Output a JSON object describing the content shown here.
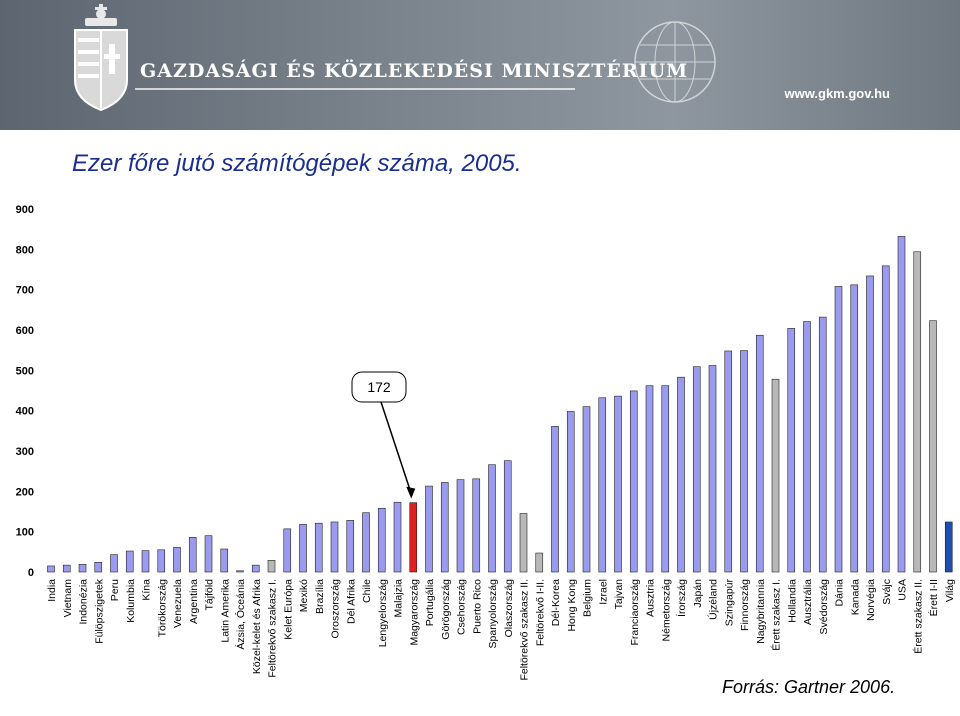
{
  "header": {
    "ministry_name": "GAZDASÁGI ÉS KÖZLEKEDÉSI MINISZTÉRIUM",
    "url": "www.gkm.gov.hu",
    "logo_icon": "hungarian-coat-of-arms-icon",
    "globe_icon": "globe-icon"
  },
  "colors": {
    "bar_default": "#9a9aee",
    "bar_group": "#b8b8b8",
    "bar_hungary": "#e02020",
    "bar_world": "#1c4fb0",
    "title": "#1a2e8f"
  },
  "chart_data": {
    "type": "bar",
    "title": "Ezer főre jutó számítógépek száma, 2005.",
    "source": "Forrás: Gartner 2006.",
    "ylim": [
      0,
      900
    ],
    "yticks": [
      0,
      100,
      200,
      300,
      400,
      500,
      600,
      700,
      800,
      900
    ],
    "grid": false,
    "annotation": {
      "text": "172",
      "target": "Magyarország"
    },
    "categories": [
      "India",
      "Vietnam",
      "Indonézia",
      "Fülöpszigetek",
      "Peru",
      "Kolumbia",
      "Kína",
      "Törökország",
      "Venezuela",
      "Argentina",
      "Tájföld",
      "Latin Amerika",
      "Ázsia, Óceánia",
      "Közel-kelet és Afrika",
      "Feltörekvő szakasz I.",
      "Kelet Európa",
      "Mexikó",
      "Brazília",
      "Oroszország",
      "Dél Afrika",
      "Chile",
      "Lengyelország",
      "Malajzia",
      "Magyarország",
      "Portugália",
      "Görögország",
      "Csehország",
      "Puerto Rico",
      "Spanyolország",
      "Olaszország",
      "Feltörekvő szakasz II.",
      "Feltörekvő I-II.",
      "Dél-Korea",
      "Hong Kong",
      "Belgium",
      "Izrael",
      "Tajvan",
      "Franciaország",
      "Ausztria",
      "Németország",
      "Írország",
      "Japán",
      "Újzéland",
      "Szingapúr",
      "Finnország",
      "Nagybritannia",
      "Érett szakasz I.",
      "Hollandia",
      "Ausztrália",
      "Svédország",
      "Dánia",
      "Kanada",
      "Norvégia",
      "Svájc",
      "USA",
      "Érett szakasz II.",
      "Érett I-II",
      "Világ"
    ],
    "values": [
      15,
      17,
      19,
      24,
      43,
      52,
      53,
      55,
      61,
      86,
      90,
      57,
      3,
      17,
      29,
      107,
      118,
      121,
      124,
      128,
      147,
      158,
      173,
      172,
      213,
      222,
      229,
      231,
      266,
      276,
      145,
      47,
      361,
      398,
      410,
      432,
      436,
      449,
      462,
      462,
      483,
      509,
      512,
      548,
      549,
      587,
      478,
      604,
      621,
      632,
      708,
      712,
      734,
      759,
      832,
      794,
      623,
      124
    ],
    "bar_kinds": [
      "default",
      "default",
      "default",
      "default",
      "default",
      "default",
      "default",
      "default",
      "default",
      "default",
      "default",
      "default",
      "default",
      "default",
      "group",
      "default",
      "default",
      "default",
      "default",
      "default",
      "default",
      "default",
      "default",
      "hungary",
      "default",
      "default",
      "default",
      "default",
      "default",
      "default",
      "group",
      "group",
      "default",
      "default",
      "default",
      "default",
      "default",
      "default",
      "default",
      "default",
      "default",
      "default",
      "default",
      "default",
      "default",
      "default",
      "group",
      "default",
      "default",
      "default",
      "default",
      "default",
      "default",
      "default",
      "default",
      "group",
      "group",
      "world"
    ]
  }
}
